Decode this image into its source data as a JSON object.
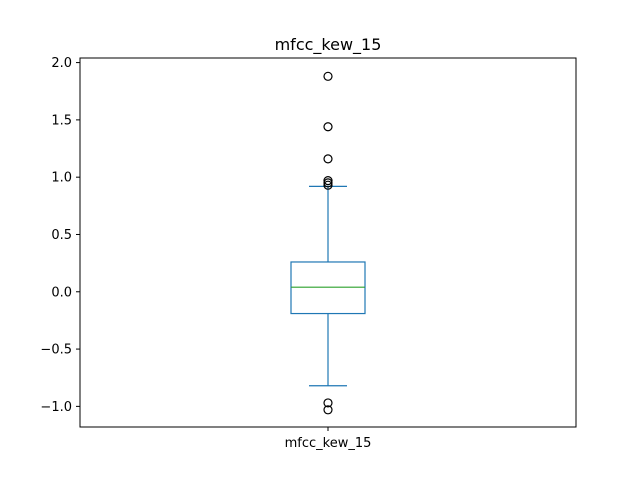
{
  "chart_data": {
    "type": "box",
    "title": "mfcc_kew_15",
    "xlabel": "",
    "ylabel": "",
    "categories": [
      "mfcc_kew_15"
    ],
    "ylim": [
      -1.18,
      2.04
    ],
    "yticks": [
      -1.0,
      -0.5,
      0.0,
      0.5,
      1.0,
      1.5,
      2.0
    ],
    "ytick_labels": [
      "−1.0",
      "−0.5",
      "0.0",
      "0.5",
      "1.0",
      "1.5",
      "2.0"
    ],
    "grid": false,
    "series": [
      {
        "whisker_low": -0.82,
        "q1": -0.19,
        "median": 0.04,
        "q3": 0.26,
        "whisker_high": 0.92,
        "outliers": [
          1.88,
          1.44,
          1.16,
          0.97,
          0.95,
          0.93,
          -0.97,
          -1.03
        ]
      }
    ],
    "colors": {
      "box": "#1f77b4",
      "median": "#2ca02c",
      "outlier_edge": "#000000",
      "axes": "#000000"
    }
  }
}
